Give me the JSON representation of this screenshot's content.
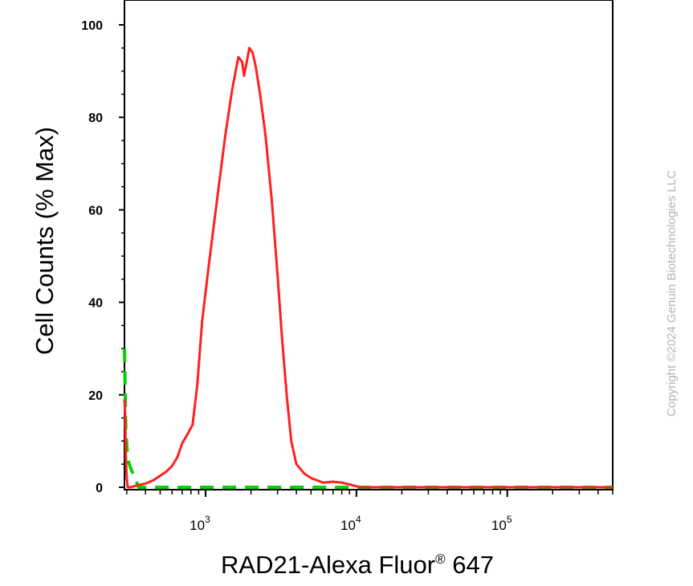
{
  "chart_data": {
    "type": "line",
    "ylabel": "Cell Counts (% Max)",
    "xlabel_main": "RAD21-Alexa Fluor",
    "xlabel_sup": "®",
    "xlabel_tail": " 647",
    "ylim": [
      0,
      100
    ],
    "yticks": [
      "0",
      "20",
      "40",
      "60",
      "80",
      "100"
    ],
    "xscale": "log",
    "xlim": [
      290,
      500000
    ],
    "xticks": [
      {
        "base": "10",
        "exp": "3",
        "value": 1000
      },
      {
        "base": "10",
        "exp": "4",
        "value": 10000
      },
      {
        "base": "10",
        "exp": "5",
        "value": 100000
      }
    ],
    "grid": false,
    "series": [
      {
        "color": "#00d200",
        "style": "dashed",
        "points": [
          [
            290,
            30
          ],
          [
            296,
            12
          ],
          [
            305,
            6
          ],
          [
            320,
            4
          ],
          [
            340,
            2
          ],
          [
            360,
            0
          ],
          [
            380,
            0
          ],
          [
            400,
            0
          ],
          [
            500,
            0
          ],
          [
            600,
            0
          ],
          [
            640,
            0
          ],
          [
            660,
            0
          ],
          [
            690,
            0
          ],
          [
            700,
            0
          ],
          [
            720,
            0
          ],
          [
            740,
            0
          ],
          [
            760,
            0
          ],
          [
            780,
            0
          ],
          [
            800,
            0
          ],
          [
            820,
            0
          ],
          [
            850,
            0
          ],
          [
            880,
            0
          ],
          [
            920,
            0
          ],
          [
            960,
            0
          ],
          [
            1000,
            0
          ],
          [
            1050,
            0
          ],
          [
            1100,
            0
          ],
          [
            1200,
            0
          ],
          [
            1300,
            0
          ],
          [
            1400,
            0
          ],
          [
            1500,
            0
          ],
          [
            1600,
            0
          ],
          [
            1800,
            0
          ],
          [
            2000,
            0
          ],
          [
            2300,
            0
          ],
          [
            2600,
            0
          ],
          [
            3000,
            0
          ],
          [
            4000,
            0
          ],
          [
            6000,
            0
          ],
          [
            10000,
            0
          ],
          [
            20000,
            0
          ],
          [
            50000,
            0
          ],
          [
            100000,
            0
          ],
          [
            200000,
            0
          ],
          [
            500000,
            0
          ]
        ]
      },
      {
        "color": "#ff2020",
        "style": "solid",
        "points": [
          [
            290,
            19
          ],
          [
            293,
            16
          ],
          [
            296,
            7
          ],
          [
            300,
            2
          ],
          [
            305,
            0
          ],
          [
            320,
            0
          ],
          [
            350,
            0.4
          ],
          [
            400,
            0.8
          ],
          [
            450,
            1.5
          ],
          [
            500,
            2.5
          ],
          [
            550,
            3.4
          ],
          [
            600,
            4.6
          ],
          [
            650,
            6.5
          ],
          [
            700,
            9.5
          ],
          [
            760,
            11.5
          ],
          [
            820,
            13.5
          ],
          [
            880,
            22
          ],
          [
            950,
            36
          ],
          [
            1050,
            48
          ],
          [
            1200,
            63
          ],
          [
            1350,
            76
          ],
          [
            1500,
            86
          ],
          [
            1650,
            93
          ],
          [
            1750,
            92
          ],
          [
            1800,
            89
          ],
          [
            1850,
            91
          ],
          [
            1950,
            95
          ],
          [
            2050,
            94
          ],
          [
            2150,
            91
          ],
          [
            2300,
            85
          ],
          [
            2500,
            76
          ],
          [
            2750,
            62
          ],
          [
            3000,
            46
          ],
          [
            3200,
            33
          ],
          [
            3450,
            20
          ],
          [
            3700,
            10
          ],
          [
            4000,
            5
          ],
          [
            4500,
            3
          ],
          [
            5000,
            2
          ],
          [
            6000,
            1
          ],
          [
            7000,
            1.2
          ],
          [
            8000,
            1
          ],
          [
            9000,
            0.6
          ],
          [
            10000,
            0.2
          ],
          [
            11000,
            0
          ],
          [
            12000,
            0
          ],
          [
            15000,
            0
          ],
          [
            20000,
            0
          ],
          [
            50000,
            0
          ],
          [
            100000,
            0
          ],
          [
            200000,
            0
          ],
          [
            500000,
            0
          ]
        ]
      }
    ]
  },
  "copyright": "Copyright ©2024 Genuin Biotechnologies LLC"
}
